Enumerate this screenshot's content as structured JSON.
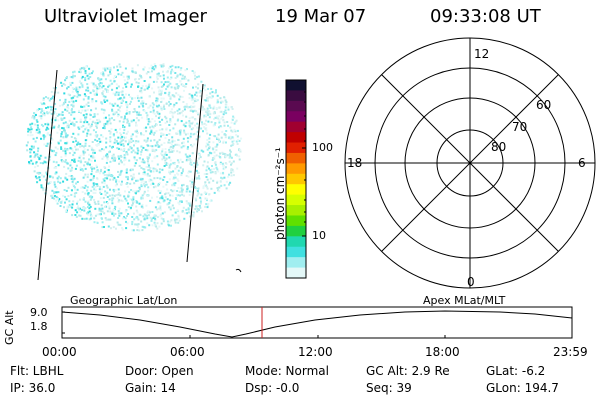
{
  "header": {
    "instrument": "Ultraviolet Imager",
    "date": "19 Mar 07",
    "time": "09:33:08 UT"
  },
  "colorbar": {
    "unit_label": "photon cm⁻²s⁻¹",
    "ticks": [
      "100",
      "10"
    ],
    "colors": [
      "#101030",
      "#3a0c40",
      "#5a0a50",
      "#7a0060",
      "#a00030",
      "#c00000",
      "#e02000",
      "#f06000",
      "#ff9a00",
      "#ffc800",
      "#ffff00",
      "#d6ff00",
      "#a8f000",
      "#60e000",
      "#20d040",
      "#20d8b0",
      "#40e0e0",
      "#a0eef0",
      "#e4f8f8"
    ]
  },
  "polar": {
    "labels": {
      "top": "12",
      "bottom": "0",
      "left": "18",
      "right": "6"
    },
    "lat_labels": [
      "60",
      "70",
      "80"
    ]
  },
  "timeline": {
    "left_title": "Geographic Lat/Lon",
    "right_title": "Apex  MLat/MLT",
    "y_axis_label": "GC Alt",
    "y_ticks": [
      "9.0",
      "1.8"
    ],
    "x_ticks": [
      "00:00",
      "06:00",
      "12:00",
      "18:00",
      "23:59"
    ],
    "marker_color": "#cc2222"
  },
  "footer": {
    "row1": [
      "Flt: LBHL",
      "Door: Open",
      "Mode: Normal",
      "GC Alt: 2.9 Re",
      "GLat:  -6.2"
    ],
    "row2": [
      "IP: 36.0",
      "Gain: 14",
      "Dsp:   -0.0",
      "Seq: 39",
      "GLon: 194.7"
    ]
  }
}
